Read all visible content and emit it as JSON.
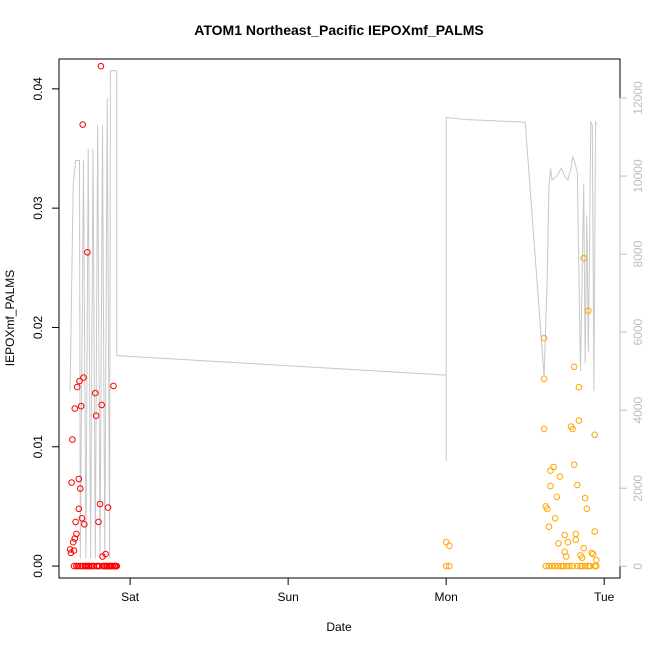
{
  "chart_data": {
    "type": "scatter",
    "title": "ATOM1 Northeast_Pacific IEPOXmf_PALMS",
    "xlabel": "Date",
    "ylabel": "IEPOXmf_PALMS",
    "x_ticks": [
      "Sat",
      "Sun",
      "Mon",
      "Tue"
    ],
    "y_ticks": [
      "0.00",
      "0.01",
      "0.02",
      "0.03",
      "0.04"
    ],
    "y_tick_values": [
      0,
      0.01,
      0.02,
      0.03,
      0.04
    ],
    "ylim": [
      -0.001,
      0.0425
    ],
    "y2_ticks": [
      "0",
      "2000",
      "4000",
      "6000",
      "8000",
      "10000",
      "12000"
    ],
    "y2_tick_values": [
      0,
      2000,
      4000,
      6000,
      8000,
      10000,
      12000
    ],
    "y2lim": [
      -300,
      13000
    ],
    "x_unit": "days since Sat 00:00",
    "xlim": [
      -0.45,
      3.1
    ],
    "grid": false,
    "colors": {
      "series_early": "#ff0000",
      "series_late": "#ffa500",
      "altitude_line": "#c8c8c8",
      "right_axis": "#bdbdbd"
    },
    "series": [
      {
        "name": "IEPOXmf_PALMS",
        "color": "#ff0000",
        "points": [
          [
            -0.38,
            0.0014
          ],
          [
            -0.375,
            0.0011
          ],
          [
            -0.37,
            0.007
          ],
          [
            -0.365,
            0.0106
          ],
          [
            -0.36,
            0.002
          ],
          [
            -0.355,
            0.0013
          ],
          [
            -0.355,
            0.0
          ],
          [
            -0.35,
            0.0023
          ],
          [
            -0.35,
            0.0132
          ],
          [
            -0.345,
            0.0037
          ],
          [
            -0.34,
            0.0027
          ],
          [
            -0.34,
            0.0
          ],
          [
            -0.335,
            0.015
          ],
          [
            -0.33,
            0.0
          ],
          [
            -0.325,
            0.0048
          ],
          [
            -0.325,
            0.0073
          ],
          [
            -0.32,
            0.0155
          ],
          [
            -0.315,
            0.0065
          ],
          [
            -0.315,
            0.0
          ],
          [
            -0.31,
            0.0134
          ],
          [
            -0.305,
            0.004
          ],
          [
            -0.3,
            0.037
          ],
          [
            -0.3,
            0.0
          ],
          [
            -0.295,
            0.0158
          ],
          [
            -0.29,
            0.0035
          ],
          [
            -0.285,
            0.0
          ],
          [
            -0.28,
            0.0
          ],
          [
            -0.275,
            0.0
          ],
          [
            -0.27,
            0.0263
          ],
          [
            -0.265,
            0.0
          ],
          [
            -0.26,
            0.0
          ],
          [
            -0.25,
            0.0
          ],
          [
            -0.24,
            0.0
          ],
          [
            -0.23,
            0.0
          ],
          [
            -0.22,
            0.0145
          ],
          [
            -0.215,
            0.0126
          ],
          [
            -0.21,
            0.0
          ],
          [
            -0.205,
            0.0
          ],
          [
            -0.2,
            0.0037
          ],
          [
            -0.195,
            0.0
          ],
          [
            -0.19,
            0.0052
          ],
          [
            -0.185,
            0.0419
          ],
          [
            -0.18,
            0.0135
          ],
          [
            -0.175,
            0.0008
          ],
          [
            -0.17,
            0.0
          ],
          [
            -0.165,
            0.0
          ],
          [
            -0.16,
            0.0
          ],
          [
            -0.155,
            0.001
          ],
          [
            -0.15,
            0.0
          ],
          [
            -0.145,
            0.0
          ],
          [
            -0.14,
            0.0049
          ],
          [
            -0.135,
            0.0
          ],
          [
            -0.13,
            0.0
          ],
          [
            -0.125,
            0.0
          ],
          [
            -0.12,
            0.0
          ],
          [
            -0.11,
            0.0
          ],
          [
            -0.105,
            0.0151
          ],
          [
            -0.1,
            0.0
          ],
          [
            -0.095,
            0.0
          ],
          [
            -0.09,
            0.0
          ],
          [
            -0.085,
            0.0
          ]
        ]
      },
      {
        "name": "IEPOXmf_PALMS",
        "color": "#ffa500",
        "points": [
          [
            2.0,
            0.002
          ],
          [
            2.0,
            0.0
          ],
          [
            2.02,
            0.0
          ],
          [
            2.02,
            0.0017
          ],
          [
            2.62,
            0.0191
          ],
          [
            2.62,
            0.0157
          ],
          [
            2.62,
            0.0115
          ],
          [
            2.63,
            0.005
          ],
          [
            2.63,
            0.0
          ],
          [
            2.64,
            0.0048
          ],
          [
            2.65,
            0.0033
          ],
          [
            2.65,
            0.0
          ],
          [
            2.66,
            0.0067
          ],
          [
            2.66,
            0.008
          ],
          [
            2.67,
            0.0
          ],
          [
            2.68,
            0.0083
          ],
          [
            2.69,
            0.004
          ],
          [
            2.69,
            0.0
          ],
          [
            2.7,
            0.0058
          ],
          [
            2.71,
            0.0019
          ],
          [
            2.71,
            0.0
          ],
          [
            2.72,
            0.0075
          ],
          [
            2.73,
            0.0
          ],
          [
            2.74,
            0.0
          ],
          [
            2.75,
            0.0026
          ],
          [
            2.75,
            0.0012
          ],
          [
            2.76,
            0.0
          ],
          [
            2.76,
            0.0008
          ],
          [
            2.77,
            0.002
          ],
          [
            2.78,
            0.0
          ],
          [
            2.79,
            0.0117
          ],
          [
            2.8,
            0.0115
          ],
          [
            2.8,
            0.0
          ],
          [
            2.81,
            0.0085
          ],
          [
            2.81,
            0.0167
          ],
          [
            2.82,
            0.0027
          ],
          [
            2.82,
            0.0022
          ],
          [
            2.83,
            0.0068
          ],
          [
            2.83,
            0.0
          ],
          [
            2.84,
            0.0122
          ],
          [
            2.84,
            0.015
          ],
          [
            2.85,
            0.0009
          ],
          [
            2.85,
            0.0
          ],
          [
            2.86,
            0.0007
          ],
          [
            2.87,
            0.0015
          ],
          [
            2.87,
            0.0258
          ],
          [
            2.88,
            0.0057
          ],
          [
            2.88,
            0.0
          ],
          [
            2.89,
            0.0048
          ],
          [
            2.9,
            0.0214
          ],
          [
            2.91,
            0.0
          ],
          [
            2.92,
            0.0011
          ],
          [
            2.93,
            0.001
          ],
          [
            2.94,
            0.0029
          ],
          [
            2.94,
            0.0
          ],
          [
            2.94,
            0.011
          ],
          [
            2.95,
            0.0005
          ],
          [
            2.95,
            0.0
          ],
          [
            2.86,
            0.0
          ],
          [
            2.9,
            0.0
          ]
        ]
      }
    ],
    "altitude_line": [
      [
        -0.38,
        4500
      ],
      [
        -0.36,
        9800
      ],
      [
        -0.345,
        10400
      ],
      [
        -0.32,
        10400
      ],
      [
        -0.315,
        200
      ],
      [
        -0.295,
        10400
      ],
      [
        -0.28,
        200
      ],
      [
        -0.265,
        10700
      ],
      [
        -0.25,
        200
      ],
      [
        -0.235,
        10700
      ],
      [
        -0.22,
        200
      ],
      [
        -0.205,
        11300
      ],
      [
        -0.19,
        200
      ],
      [
        -0.175,
        11300
      ],
      [
        -0.16,
        200
      ],
      [
        -0.145,
        12000
      ],
      [
        -0.13,
        200
      ],
      [
        -0.125,
        12700
      ],
      [
        -0.085,
        12700
      ],
      [
        -0.085,
        5400
      ],
      [
        2.0,
        4900
      ],
      [
        2.0,
        2700
      ],
      [
        2.0,
        11500
      ],
      [
        2.12,
        11450
      ],
      [
        2.5,
        11380
      ],
      [
        2.62,
        4870
      ],
      [
        2.64,
        7500
      ],
      [
        2.65,
        9700
      ],
      [
        2.66,
        10200
      ],
      [
        2.67,
        9900
      ],
      [
        2.7,
        10000
      ],
      [
        2.73,
        10200
      ],
      [
        2.75,
        10000
      ],
      [
        2.77,
        9900
      ],
      [
        2.79,
        10200
      ],
      [
        2.8,
        10500
      ],
      [
        2.81,
        10400
      ],
      [
        2.83,
        10100
      ],
      [
        2.85,
        5000
      ],
      [
        2.87,
        9800
      ],
      [
        2.88,
        5200
      ],
      [
        2.89,
        9000
      ],
      [
        2.9,
        5500
      ],
      [
        2.915,
        11400
      ],
      [
        2.925,
        11300
      ],
      [
        2.935,
        4500
      ],
      [
        2.945,
        11400
      ],
      [
        2.95,
        11300
      ]
    ]
  }
}
